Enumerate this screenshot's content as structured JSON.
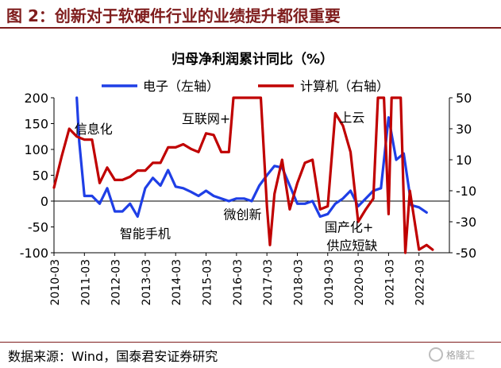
{
  "figure_title": "图 2：创新对于软硬件行业的业绩提升都很重要",
  "source": "数据来源：Wind，国泰君安证券研究",
  "watermark": {
    "icon": "wechat-bubble-icon",
    "text": "格隆汇"
  },
  "chart_data": {
    "type": "line",
    "title": "归母净利润累计同比（%）",
    "legend_position": "top",
    "grid": false,
    "x_ticks": [
      "2010-03",
      "2011-03",
      "2012-03",
      "2013-03",
      "2014-03",
      "2015-03",
      "2016-03",
      "2017-03",
      "2018-03",
      "2019-03",
      "2020-03",
      "2021-03",
      "2022-03"
    ],
    "x_range": [
      2010.0,
      2023.0
    ],
    "y_left": {
      "range": [
        -100,
        200
      ],
      "ticks": [
        -100,
        -50,
        0,
        50,
        100,
        150,
        200
      ]
    },
    "y_right": {
      "range": [
        -50,
        50
      ],
      "ticks": [
        -50,
        -30,
        -10,
        10,
        30,
        50
      ]
    },
    "series": [
      {
        "name": "电子（左轴）",
        "axis": "left",
        "color": "#1f3fe6",
        "points": [
          [
            2010.75,
            200
          ],
          [
            2010.83,
            115
          ],
          [
            2011.0,
            10
          ],
          [
            2011.25,
            10
          ],
          [
            2011.5,
            -5
          ],
          [
            2011.75,
            25
          ],
          [
            2012.0,
            -20
          ],
          [
            2012.25,
            -20
          ],
          [
            2012.5,
            -5
          ],
          [
            2012.75,
            -30
          ],
          [
            2013.0,
            25
          ],
          [
            2013.25,
            45
          ],
          [
            2013.5,
            30
          ],
          [
            2013.75,
            60
          ],
          [
            2014.0,
            28
          ],
          [
            2014.25,
            25
          ],
          [
            2014.5,
            18
          ],
          [
            2014.75,
            10
          ],
          [
            2015.0,
            20
          ],
          [
            2015.25,
            10
          ],
          [
            2015.5,
            5
          ],
          [
            2015.75,
            0
          ],
          [
            2016.0,
            5
          ],
          [
            2016.25,
            5
          ],
          [
            2016.5,
            0
          ],
          [
            2016.75,
            30
          ],
          [
            2017.0,
            50
          ],
          [
            2017.25,
            68
          ],
          [
            2017.5,
            65
          ],
          [
            2017.75,
            30
          ],
          [
            2018.0,
            -5
          ],
          [
            2018.25,
            -5
          ],
          [
            2018.5,
            0
          ],
          [
            2018.75,
            -30
          ],
          [
            2019.0,
            -25
          ],
          [
            2019.25,
            -5
          ],
          [
            2019.5,
            5
          ],
          [
            2019.75,
            20
          ],
          [
            2020.0,
            -10
          ],
          [
            2020.25,
            5
          ],
          [
            2020.5,
            20
          ],
          [
            2020.75,
            25
          ],
          [
            2021.0,
            162
          ],
          [
            2021.25,
            80
          ],
          [
            2021.5,
            92
          ],
          [
            2021.75,
            -8
          ],
          [
            2022.0,
            -12
          ],
          [
            2022.25,
            -22
          ]
        ]
      },
      {
        "name": "计算机（右轴）",
        "axis": "right",
        "color": "#c00000",
        "points": [
          [
            2010.0,
            -8
          ],
          [
            2010.25,
            12
          ],
          [
            2010.5,
            30
          ],
          [
            2010.75,
            25
          ],
          [
            2011.0,
            23
          ],
          [
            2011.25,
            23
          ],
          [
            2011.5,
            -5
          ],
          [
            2011.75,
            5
          ],
          [
            2012.0,
            -3
          ],
          [
            2012.25,
            -3
          ],
          [
            2012.5,
            -1
          ],
          [
            2012.75,
            3
          ],
          [
            2013.0,
            3
          ],
          [
            2013.25,
            8
          ],
          [
            2013.5,
            8
          ],
          [
            2013.75,
            18
          ],
          [
            2014.0,
            18
          ],
          [
            2014.25,
            20
          ],
          [
            2014.5,
            17
          ],
          [
            2014.75,
            15
          ],
          [
            2015.0,
            27
          ],
          [
            2015.25,
            26
          ],
          [
            2015.5,
            15
          ],
          [
            2015.75,
            15
          ],
          [
            2015.9,
            50
          ],
          [
            2016.8,
            50
          ],
          [
            2017.0,
            -20
          ],
          [
            2017.1,
            -45
          ],
          [
            2017.25,
            -12
          ],
          [
            2017.5,
            10
          ],
          [
            2017.75,
            -22
          ],
          [
            2018.0,
            -5
          ],
          [
            2018.25,
            8
          ],
          [
            2018.5,
            10
          ],
          [
            2018.75,
            -22
          ],
          [
            2019.0,
            -20
          ],
          [
            2019.25,
            40
          ],
          [
            2019.5,
            32
          ],
          [
            2019.75,
            15
          ],
          [
            2020.0,
            -30
          ],
          [
            2020.25,
            -22
          ],
          [
            2020.5,
            -15
          ],
          [
            2020.65,
            50
          ],
          [
            2020.85,
            50
          ],
          [
            2021.0,
            -25
          ],
          [
            2021.1,
            50
          ],
          [
            2021.4,
            50
          ],
          [
            2021.55,
            -50
          ],
          [
            2021.7,
            -10
          ],
          [
            2022.0,
            -48
          ],
          [
            2022.25,
            -45
          ],
          [
            2022.45,
            -48
          ]
        ]
      }
    ],
    "annotations": [
      {
        "text": "信息化",
        "x": 2011.3,
        "y": 140
      },
      {
        "text": "互联网+",
        "x": 2015.0,
        "y": 160
      },
      {
        "text": "智能手机",
        "x": 2013.0,
        "y": -62
      },
      {
        "text": "微创新",
        "x": 2016.2,
        "y": -25
      },
      {
        "text": "上云",
        "x": 2019.8,
        "y": 162
      },
      {
        "text": "国产化+",
        "x": 2019.7,
        "y": -50
      },
      {
        "text": "供应短缺",
        "x": 2019.8,
        "y": -85
      }
    ]
  }
}
